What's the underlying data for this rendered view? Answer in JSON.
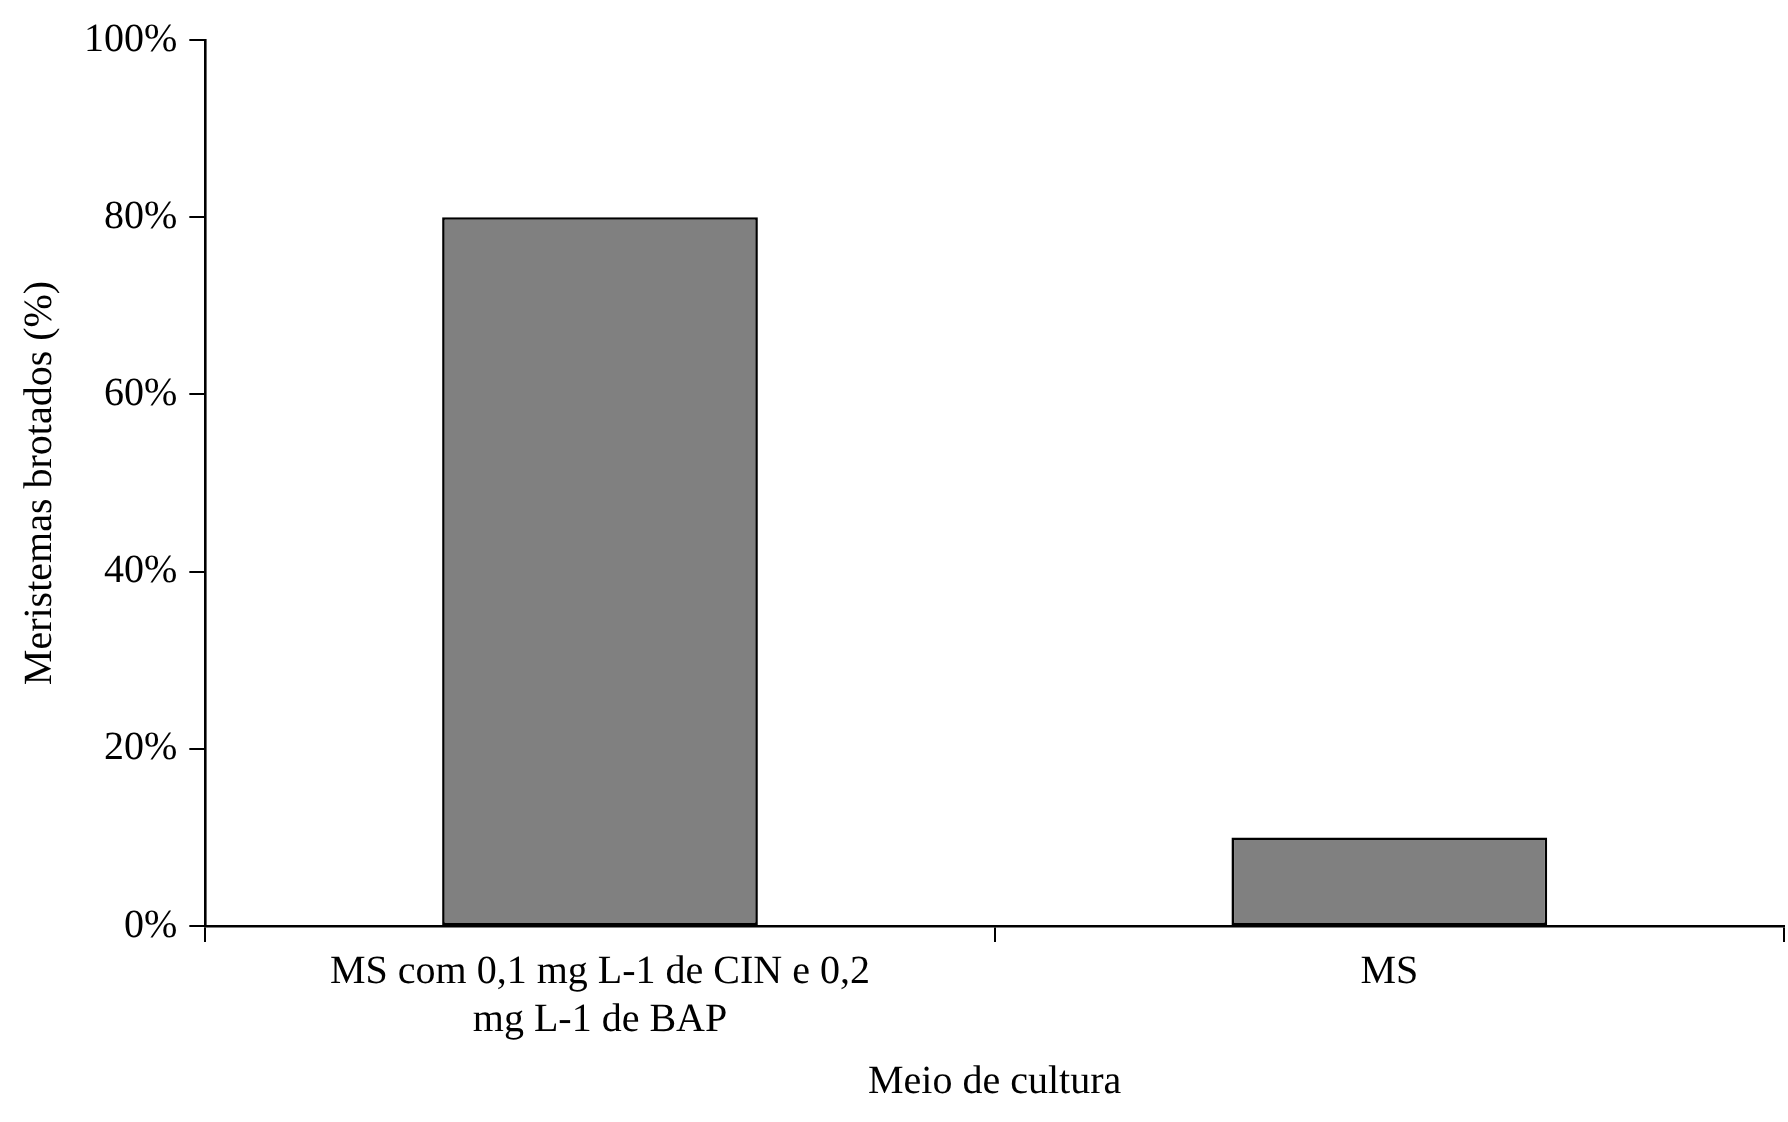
{
  "chart_data": {
    "type": "bar",
    "xlabel": "Meio de cultura",
    "ylabel": "Meristemas brotados (%)",
    "categories": [
      "MS com 0,1 mg L-1 de CIN e 0,2 mg L-1 de BAP",
      "MS"
    ],
    "values": [
      80,
      10
    ],
    "color": "#808080",
    "ylim": [
      0,
      100
    ],
    "yticks": [
      {
        "value": 0,
        "label": "0%"
      },
      {
        "value": 20,
        "label": "20%"
      },
      {
        "value": 40,
        "label": "40%"
      },
      {
        "value": 60,
        "label": "60%"
      },
      {
        "value": 80,
        "label": "80%"
      },
      {
        "value": 100,
        "label": "100%"
      }
    ],
    "grid": false,
    "legend": false
  }
}
